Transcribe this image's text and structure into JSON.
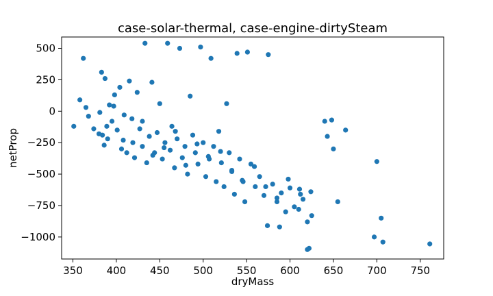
{
  "chart_data": {
    "type": "scatter",
    "title": "case-solar-thermal, case-engine-dirtySteam",
    "xlabel": "dryMass",
    "ylabel": "netProp",
    "xlim": [
      337,
      777
    ],
    "ylim": [
      -1175,
      590
    ],
    "x_ticks": [
      350,
      400,
      450,
      500,
      550,
      600,
      650,
      700,
      750
    ],
    "y_ticks": [
      500,
      250,
      0,
      -250,
      -500,
      -750,
      -1000
    ],
    "x_tick_labels": [
      "350",
      "400",
      "450",
      "500",
      "550",
      "600",
      "650",
      "700",
      "750"
    ],
    "y_tick_labels": [
      "500",
      "250",
      "0",
      "−250",
      "−500",
      "−750",
      "−1000"
    ],
    "grid": false,
    "marker_color": "#1f77b4",
    "series": [
      {
        "x": [
          351,
          358,
          362,
          365,
          368,
          374,
          381,
          383,
          384,
          386,
          387,
          389,
          390,
          392,
          395,
          398,
          401,
          404,
          406,
          409,
          412,
          415,
          418,
          421,
          424,
          427,
          430,
          433,
          435,
          438,
          441,
          444,
          447,
          450,
          453,
          456,
          459,
          462,
          464,
          467,
          470,
          473,
          476,
          479,
          482,
          485,
          488,
          491,
          494,
          497,
          500,
          503,
          506,
          509,
          512,
          515,
          518,
          521,
          524,
          527,
          530,
          533,
          536,
          539,
          542,
          545,
          548,
          551,
          555,
          560,
          565,
          570,
          575,
          580,
          585,
          590,
          595,
          600,
          605,
          610,
          615,
          620,
          625,
          640,
          643,
          648,
          650,
          655,
          664,
          700,
          705,
          707,
          697,
          761,
          622,
          620,
          574,
          588,
          612,
          380,
          397,
          408,
          419,
          430,
          442,
          455,
          468,
          480,
          493,
          507,
          520,
          533,
          546,
          559,
          572,
          585,
          598,
          611,
          624
        ],
        "y": [
          -120,
          90,
          420,
          30,
          -40,
          -140,
          -10,
          310,
          -190,
          -270,
          260,
          -120,
          -220,
          50,
          -80,
          130,
          -150,
          190,
          -300,
          -30,
          -330,
          240,
          -60,
          -370,
          150,
          -140,
          -280,
          540,
          -410,
          -200,
          230,
          -330,
          -170,
          60,
          -380,
          -250,
          540,
          -310,
          -120,
          -450,
          -220,
          500,
          -370,
          -280,
          -500,
          120,
          -190,
          -330,
          -420,
          510,
          -250,
          -520,
          -360,
          420,
          -280,
          -560,
          -160,
          -410,
          -600,
          60,
          -330,
          -470,
          -660,
          460,
          -380,
          -550,
          -720,
          470,
          -420,
          -600,
          -520,
          -670,
          450,
          -580,
          -720,
          -650,
          -800,
          -610,
          -760,
          -780,
          -700,
          -880,
          -830,
          -80,
          -200,
          -70,
          -300,
          -720,
          -150,
          -400,
          -850,
          -1040,
          -1000,
          -1055,
          -1090,
          -1100,
          -910,
          -920,
          -660,
          -180,
          40,
          -230,
          -250,
          -80,
          -350,
          -290,
          -160,
          -430,
          -260,
          -380,
          -320,
          -480,
          -560,
          -440,
          -600,
          -690,
          -540,
          -620,
          -640
        ]
      }
    ]
  }
}
